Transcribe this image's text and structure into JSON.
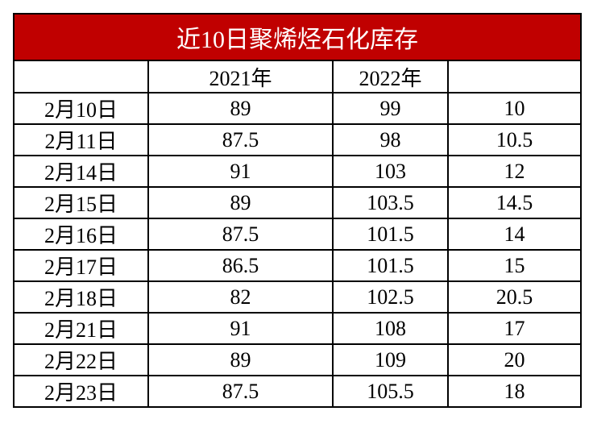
{
  "table": {
    "title": "近10日聚烯烃石化库存",
    "columns": [
      "2021年",
      "2022年"
    ],
    "rows": [
      [
        "2月10日",
        "89",
        "99",
        "10"
      ],
      [
        "2月11日",
        "87.5",
        "98",
        "10.5"
      ],
      [
        "2月14日",
        "91",
        "103",
        "12"
      ],
      [
        "2月15日",
        "89",
        "103.5",
        "14.5"
      ],
      [
        "2月16日",
        "87.5",
        "101.5",
        "14"
      ],
      [
        "2月17日",
        "86.5",
        "101.5",
        "15"
      ],
      [
        "2月18日",
        "82",
        "102.5",
        "20.5"
      ],
      [
        "2月21日",
        "91",
        "108",
        "17"
      ],
      [
        "2月22日",
        "89",
        "109",
        "20"
      ],
      [
        "2月23日",
        "87.5",
        "105.5",
        "18"
      ]
    ]
  }
}
